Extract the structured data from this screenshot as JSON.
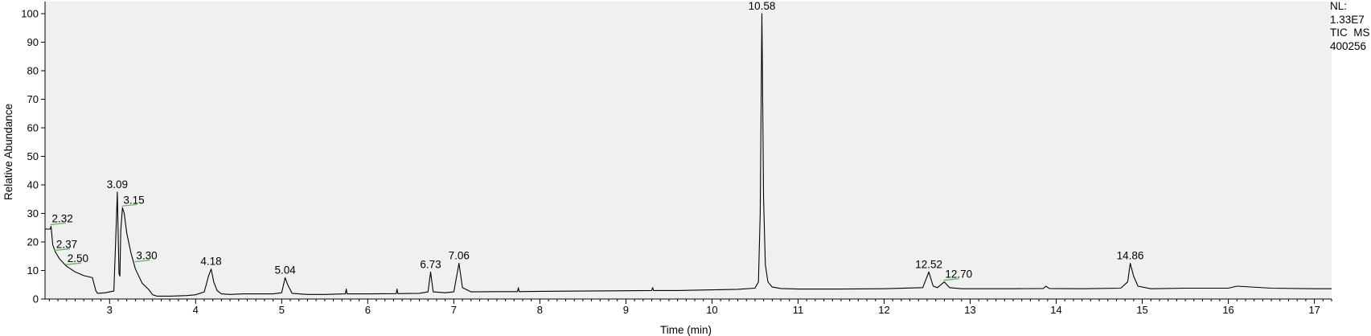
{
  "info": {
    "nl_label": "NL:",
    "nl_value": "1.33E7",
    "trace": "TIC  MS",
    "sample": "400256"
  },
  "chart_data": {
    "type": "line",
    "title": "",
    "xlabel": "Time (min)",
    "ylabel": "Relative Abundance",
    "xlim": [
      2.25,
      17.2
    ],
    "ylim": [
      0,
      100
    ],
    "xticks": [
      3,
      4,
      5,
      6,
      7,
      8,
      9,
      10,
      11,
      12,
      13,
      14,
      15,
      16,
      17
    ],
    "yticks": [
      0,
      10,
      20,
      30,
      40,
      50,
      60,
      70,
      80,
      90,
      100
    ],
    "grid": false,
    "series": [
      {
        "color": "#000000",
        "x": [
          2.25,
          2.31,
          2.32,
          2.34,
          2.37,
          2.42,
          2.5,
          2.6,
          2.7,
          2.8,
          2.84,
          2.86,
          2.95,
          3.05,
          3.07,
          3.09,
          3.11,
          3.12,
          3.13,
          3.15,
          3.17,
          3.2,
          3.25,
          3.3,
          3.38,
          3.45,
          3.5,
          3.55,
          3.6,
          3.7,
          3.8,
          3.9,
          4.0,
          4.1,
          4.15,
          4.18,
          4.21,
          4.25,
          4.3,
          4.4,
          4.55,
          4.7,
          4.9,
          5.0,
          5.04,
          5.07,
          5.12,
          5.3,
          5.5,
          5.74,
          5.75,
          5.76,
          6.0,
          6.33,
          6.34,
          6.35,
          6.6,
          6.7,
          6.73,
          6.76,
          6.9,
          7.0,
          7.06,
          7.1,
          7.2,
          7.5,
          7.74,
          7.75,
          7.76,
          8.0,
          8.5,
          9.0,
          9.3,
          9.31,
          9.32,
          9.6,
          10.0,
          10.3,
          10.5,
          10.54,
          10.56,
          10.58,
          10.6,
          10.62,
          10.65,
          10.7,
          10.8,
          11.0,
          11.5,
          12.0,
          12.45,
          12.52,
          12.57,
          12.62,
          12.7,
          12.76,
          12.9,
          13.5,
          13.85,
          13.88,
          13.92,
          14.3,
          14.75,
          14.83,
          14.86,
          14.9,
          14.95,
          15.1,
          15.5,
          16.0,
          16.1,
          16.5,
          17.0,
          17.2
        ],
        "y": [
          24.5,
          24.5,
          25.5,
          19,
          16.5,
          14,
          11.5,
          9.5,
          8.2,
          7.5,
          3,
          2,
          2.2,
          2.8,
          20,
          37.5,
          9,
          8,
          24,
          32,
          30,
          23,
          16,
          10.5,
          5.5,
          3.5,
          1.5,
          1,
          1,
          1,
          1.1,
          1.2,
          1.5,
          2.5,
          8,
          10.5,
          6,
          3,
          1.8,
          1.6,
          1.8,
          1.8,
          1.8,
          2.2,
          7.5,
          5,
          2,
          1.6,
          1.6,
          1.8,
          3.5,
          1.8,
          1.8,
          1.9,
          3.5,
          1.9,
          2,
          2.5,
          9.5,
          2.5,
          2.2,
          2.5,
          12.5,
          4,
          2.5,
          2.6,
          2.6,
          4,
          2.6,
          2.7,
          2.8,
          2.9,
          3,
          4,
          3,
          3,
          3.2,
          3.4,
          3.8,
          6,
          30,
          100,
          35,
          12,
          6,
          4.2,
          3.7,
          3.5,
          3.5,
          3.6,
          4,
          9.5,
          4.5,
          4,
          6,
          4,
          3.6,
          3.6,
          3.7,
          4.5,
          3.7,
          3.6,
          3.8,
          6,
          12.5,
          8,
          4.5,
          3.6,
          3.8,
          3.8,
          4.5,
          3.8,
          3.6,
          3.6
        ]
      }
    ],
    "peak_labels": [
      {
        "text": "2.32",
        "x": 2.32,
        "y": 25.5
      },
      {
        "text": "2.37",
        "x": 2.37,
        "y": 16.5
      },
      {
        "text": "2.50",
        "x": 2.5,
        "y": 11.5
      },
      {
        "text": "3.09",
        "x": 3.09,
        "y": 37.5
      },
      {
        "text": "3.15",
        "x": 3.15,
        "y": 32
      },
      {
        "text": "3.30",
        "x": 3.3,
        "y": 12.5
      },
      {
        "text": "4.18",
        "x": 4.18,
        "y": 10.5
      },
      {
        "text": "5.04",
        "x": 5.04,
        "y": 7.5
      },
      {
        "text": "6.73",
        "x": 6.73,
        "y": 9.5
      },
      {
        "text": "7.06",
        "x": 7.06,
        "y": 12.5
      },
      {
        "text": "10.58",
        "x": 10.58,
        "y": 100
      },
      {
        "text": "12.52",
        "x": 12.52,
        "y": 9.5
      },
      {
        "text": "12.70",
        "x": 12.7,
        "y": 6
      },
      {
        "text": "14.86",
        "x": 14.86,
        "y": 12.5
      }
    ],
    "baseline_marks": [
      2.32,
      2.37,
      2.5,
      3.15,
      3.3,
      12.7
    ]
  }
}
